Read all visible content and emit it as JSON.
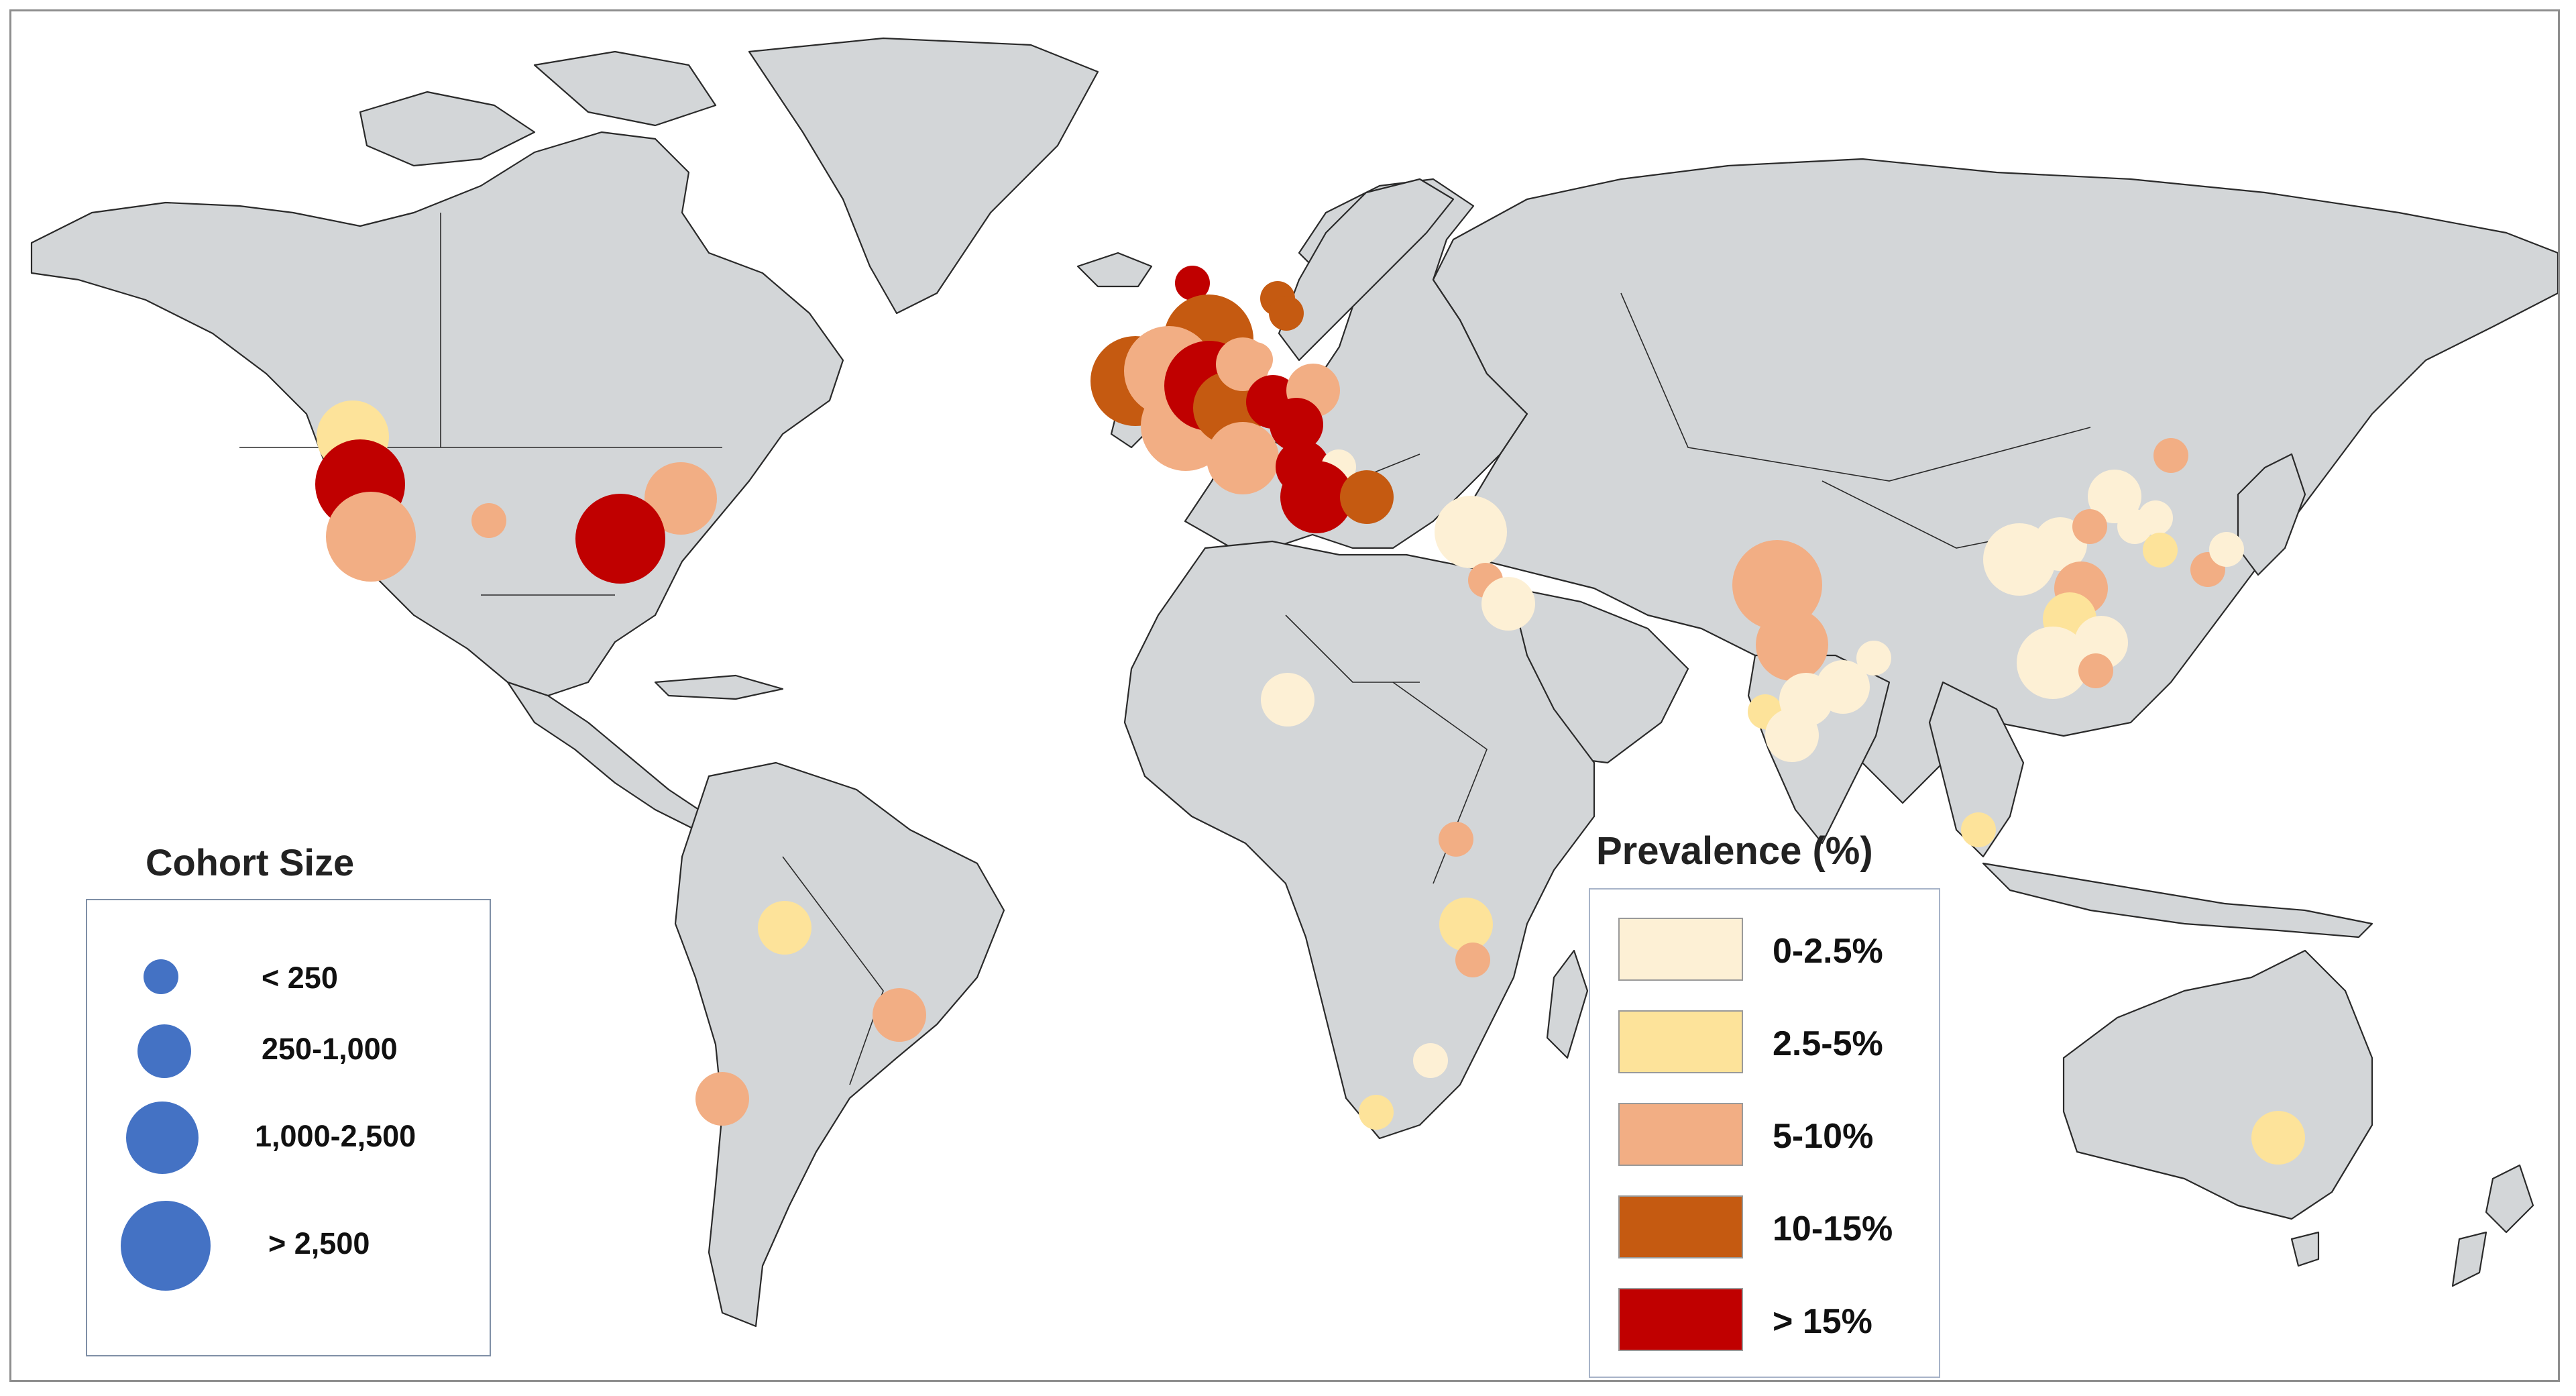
{
  "colors": {
    "land": "#d3d6d8",
    "border": "#2a2a2a",
    "cohort_dot": "#4472c4",
    "prevalence": {
      "0-2.5%": "#fdf0d5",
      "2.5-5%": "#fde39a",
      "5-10%": "#f2ae84",
      "10-15%": "#c55a11",
      "> 15%": "#c00000"
    }
  },
  "legend": {
    "cohort_size": {
      "title": "Cohort Size",
      "items": [
        {
          "label": "< 250",
          "size_class": "xs"
        },
        {
          "label": "250-1,000",
          "size_class": "s"
        },
        {
          "label": "1,000-2,500",
          "size_class": "m"
        },
        {
          "label": "> 2,500",
          "size_class": "l"
        }
      ]
    },
    "prevalence": {
      "title": "Prevalence (%)",
      "items": [
        {
          "label": "0-2.5%",
          "key": "0-2.5%"
        },
        {
          "label": "2.5-5%",
          "key": "2.5-5%"
        },
        {
          "label": "5-10%",
          "key": "5-10%"
        },
        {
          "label": "10-15%",
          "key": "10-15%"
        },
        {
          "label": "> 15%",
          "key": "> 15%"
        }
      ]
    }
  },
  "markers": [
    {
      "region": "western-canada",
      "category": "2.5-5%",
      "size": "m"
    },
    {
      "region": "us-west-coast",
      "category": "> 15%",
      "size": "l"
    },
    {
      "region": "us-california",
      "category": "5-10%",
      "size": "l"
    },
    {
      "region": "us-central",
      "category": "5-10%",
      "size": "xs"
    },
    {
      "region": "us-northeast",
      "category": "5-10%",
      "size": "m"
    },
    {
      "region": "us-east",
      "category": "> 15%",
      "size": "l"
    },
    {
      "region": "iceland-norway",
      "category": "> 15%",
      "size": "xs"
    },
    {
      "region": "uk-north",
      "category": "10-15%",
      "size": "l"
    },
    {
      "region": "uk-ireland",
      "category": "10-15%",
      "size": "l"
    },
    {
      "region": "uk-central",
      "category": "5-10%",
      "size": "l"
    },
    {
      "region": "uk-south",
      "category": "5-10%",
      "size": "l"
    },
    {
      "region": "england",
      "category": "> 15%",
      "size": "l"
    },
    {
      "region": "belgium",
      "category": "10-15%",
      "size": "m"
    },
    {
      "region": "netherlands",
      "category": "5-10%",
      "size": "s"
    },
    {
      "region": "denmark",
      "category": "5-10%",
      "size": "xs"
    },
    {
      "region": "sweden-north",
      "category": "10-15%",
      "size": "xs"
    },
    {
      "region": "sweden-south",
      "category": "10-15%",
      "size": "xs"
    },
    {
      "region": "germany-north",
      "category": "> 15%",
      "size": "s"
    },
    {
      "region": "poland",
      "category": "5-10%",
      "size": "s"
    },
    {
      "region": "germany-south",
      "category": "> 15%",
      "size": "s"
    },
    {
      "region": "france",
      "category": "5-10%",
      "size": "m"
    },
    {
      "region": "switzerland",
      "category": "> 15%",
      "size": "s"
    },
    {
      "region": "austria",
      "category": "0-2.5%",
      "size": "xs"
    },
    {
      "region": "italy-north",
      "category": "> 15%",
      "size": "m"
    },
    {
      "region": "balkans",
      "category": "10-15%",
      "size": "s"
    },
    {
      "region": "turkey",
      "category": "0-2.5%",
      "size": "m"
    },
    {
      "region": "lebanon",
      "category": "5-10%",
      "size": "xs"
    },
    {
      "region": "israel-jordan",
      "category": "0-2.5%",
      "size": "s"
    },
    {
      "region": "nigeria-chad",
      "category": "0-2.5%",
      "size": "s"
    },
    {
      "region": "uganda",
      "category": "5-10%",
      "size": "xs"
    },
    {
      "region": "malawi",
      "category": "2.5-5%",
      "size": "s"
    },
    {
      "region": "mozambique",
      "category": "5-10%",
      "size": "xs"
    },
    {
      "region": "south-africa-north",
      "category": "0-2.5%",
      "size": "xs"
    },
    {
      "region": "south-africa-cape",
      "category": "2.5-5%",
      "size": "xs"
    },
    {
      "region": "bolivia-brazil",
      "category": "2.5-5%",
      "size": "s"
    },
    {
      "region": "brazil-southeast",
      "category": "5-10%",
      "size": "s"
    },
    {
      "region": "argentina-chile",
      "category": "5-10%",
      "size": "s"
    },
    {
      "region": "pakistan-india-north",
      "category": "5-10%",
      "size": "l"
    },
    {
      "region": "india-central",
      "category": "5-10%",
      "size": "m"
    },
    {
      "region": "india-east",
      "category": "2.5-5%",
      "size": "xs"
    },
    {
      "region": "india-west",
      "category": "2.5-5%",
      "size": "xs"
    },
    {
      "region": "india-mid",
      "category": "0-2.5%",
      "size": "s"
    },
    {
      "region": "india-bengal",
      "category": "0-2.5%",
      "size": "s"
    },
    {
      "region": "india-south",
      "category": "0-2.5%",
      "size": "s"
    },
    {
      "region": "bangladesh",
      "category": "0-2.5%",
      "size": "xs"
    },
    {
      "region": "china-northeast",
      "category": "5-10%",
      "size": "xs"
    },
    {
      "region": "china-beijing",
      "category": "0-2.5%",
      "size": "s"
    },
    {
      "region": "china-west",
      "category": "0-2.5%",
      "size": "m"
    },
    {
      "region": "china-central",
      "category": "0-2.5%",
      "size": "s"
    },
    {
      "region": "china-shandong",
      "category": "5-10%",
      "size": "xs"
    },
    {
      "region": "korea-north",
      "category": "0-2.5%",
      "size": "xs"
    },
    {
      "region": "korea",
      "category": "0-2.5%",
      "size": "xs"
    },
    {
      "region": "korea-south",
      "category": "2.5-5%",
      "size": "xs"
    },
    {
      "region": "japan-south",
      "category": "5-10%",
      "size": "xs"
    },
    {
      "region": "japan",
      "category": "0-2.5%",
      "size": "xs"
    },
    {
      "region": "china-east",
      "category": "5-10%",
      "size": "s"
    },
    {
      "region": "china-shanghai",
      "category": "2.5-5%",
      "size": "s"
    },
    {
      "region": "china-south",
      "category": "0-2.5%",
      "size": "s"
    },
    {
      "region": "china-southeast",
      "category": "0-2.5%",
      "size": "m"
    },
    {
      "region": "taiwan",
      "category": "5-10%",
      "size": "xs"
    },
    {
      "region": "malaysia",
      "category": "2.5-5%",
      "size": "xs"
    },
    {
      "region": "australia-southeast",
      "category": "2.5-5%",
      "size": "s"
    }
  ]
}
